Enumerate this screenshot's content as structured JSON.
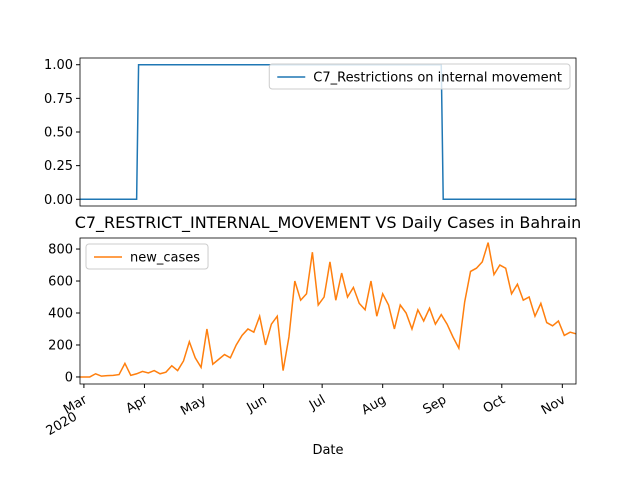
{
  "chart_data": [
    {
      "type": "line",
      "x": [
        -2,
        27,
        28,
        183,
        184,
        252
      ],
      "series": [
        {
          "name": "C7_Restrictions on internal movement",
          "color": "#1f77b4",
          "values": [
            0,
            0,
            1,
            1,
            0,
            0
          ]
        }
      ],
      "xlim": [
        -2,
        252
      ],
      "ylim": [
        -0.05,
        1.05
      ],
      "yticks": [
        {
          "value": 0,
          "label": "0.00"
        },
        {
          "value": 0.25,
          "label": "0.25"
        },
        {
          "value": 0.5,
          "label": "0.50"
        },
        {
          "value": 0.75,
          "label": "0.75"
        },
        {
          "value": 1,
          "label": "1.00"
        }
      ],
      "legend": "upper right"
    },
    {
      "type": "line",
      "title": "C7_RESTRICT_INTERNAL_MOVEMENT VS Daily Cases in Bahrain",
      "x_label": "Date",
      "x": [
        -2,
        0,
        3,
        6,
        9,
        12,
        15,
        18,
        21,
        24,
        27,
        30,
        33,
        36,
        39,
        42,
        45,
        48,
        51,
        54,
        57,
        60,
        63,
        66,
        69,
        72,
        75,
        78,
        81,
        84,
        87,
        90,
        93,
        96,
        99,
        102,
        105,
        108,
        111,
        114,
        117,
        120,
        123,
        126,
        129,
        132,
        135,
        138,
        141,
        144,
        147,
        150,
        153,
        156,
        159,
        162,
        165,
        168,
        171,
        174,
        177,
        180,
        183,
        186,
        189,
        192,
        195,
        198,
        201,
        204,
        207,
        210,
        213,
        216,
        219,
        222,
        225,
        228,
        231,
        234,
        237,
        240,
        243,
        246,
        249,
        252
      ],
      "series": [
        {
          "name": "new_cases",
          "color": "#ff7f0e",
          "values": [
            0,
            0,
            0,
            20,
            5,
            8,
            10,
            15,
            85,
            10,
            20,
            35,
            25,
            40,
            20,
            30,
            70,
            40,
            100,
            220,
            120,
            60,
            300,
            80,
            110,
            140,
            120,
            200,
            260,
            300,
            280,
            380,
            200,
            330,
            380,
            40,
            250,
            600,
            480,
            520,
            780,
            450,
            500,
            720,
            480,
            650,
            500,
            560,
            460,
            420,
            600,
            380,
            520,
            450,
            300,
            450,
            400,
            300,
            420,
            350,
            430,
            330,
            390,
            330,
            250,
            180,
            470,
            660,
            680,
            720,
            840,
            640,
            700,
            680,
            520,
            580,
            480,
            500,
            380,
            460,
            340,
            320,
            350,
            260,
            280,
            270
          ]
        }
      ],
      "xlim": [
        -2,
        252
      ],
      "xticks": [
        {
          "value": 0,
          "label": "Mar"
        },
        {
          "value": 31,
          "label": "Apr"
        },
        {
          "value": 61,
          "label": "May"
        },
        {
          "value": 92,
          "label": "Jun"
        },
        {
          "value": 122,
          "label": "Jul"
        },
        {
          "value": 153,
          "label": "Aug"
        },
        {
          "value": 184,
          "label": "Sep"
        },
        {
          "value": 214,
          "label": "Oct"
        },
        {
          "value": 245,
          "label": "Nov"
        }
      ],
      "xtick_year": "2020",
      "ylim": [
        -44,
        869
      ],
      "yticks": [
        0,
        200,
        400,
        600,
        800
      ],
      "legend": "upper left"
    }
  ]
}
